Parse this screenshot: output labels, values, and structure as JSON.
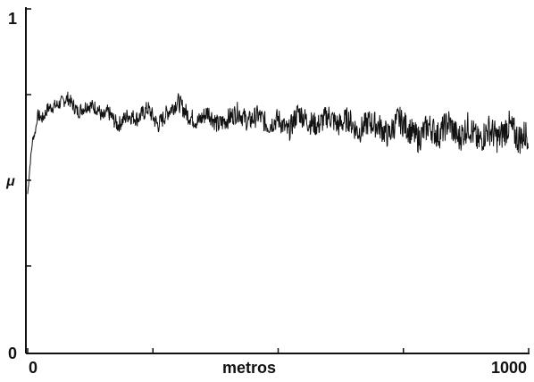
{
  "chart_data": {
    "type": "line",
    "title": "",
    "xlabel": "metros",
    "ylabel": "μ",
    "xlim": [
      0,
      1000
    ],
    "ylim": [
      0,
      1
    ],
    "x_tick_labels": [
      "0",
      "1000"
    ],
    "y_tick_labels": [
      "0",
      "1"
    ],
    "grid": false,
    "legend": "none",
    "line_color": "#111111",
    "series": [
      {
        "x": [
          0,
          5,
          10,
          15,
          20,
          30,
          40,
          60,
          80,
          100,
          120,
          140,
          150,
          160,
          180,
          200,
          220,
          240,
          260,
          280,
          300,
          320,
          340,
          360,
          380,
          400,
          420,
          440,
          460,
          480,
          500,
          520,
          540,
          560,
          580,
          600,
          620,
          640,
          660,
          680,
          700,
          720,
          740,
          760,
          780,
          800,
          820,
          840,
          860,
          880,
          900,
          920,
          940,
          960,
          980,
          1000
        ],
        "y": [
          0.46,
          0.55,
          0.62,
          0.64,
          0.69,
          0.68,
          0.71,
          0.72,
          0.74,
          0.7,
          0.72,
          0.71,
          0.68,
          0.7,
          0.66,
          0.69,
          0.68,
          0.71,
          0.66,
          0.7,
          0.73,
          0.69,
          0.67,
          0.7,
          0.66,
          0.68,
          0.7,
          0.67,
          0.69,
          0.66,
          0.68,
          0.64,
          0.7,
          0.67,
          0.66,
          0.69,
          0.66,
          0.68,
          0.64,
          0.67,
          0.66,
          0.63,
          0.68,
          0.65,
          0.62,
          0.66,
          0.63,
          0.67,
          0.62,
          0.66,
          0.61,
          0.65,
          0.62,
          0.66,
          0.62,
          0.64
        ]
      }
    ]
  }
}
